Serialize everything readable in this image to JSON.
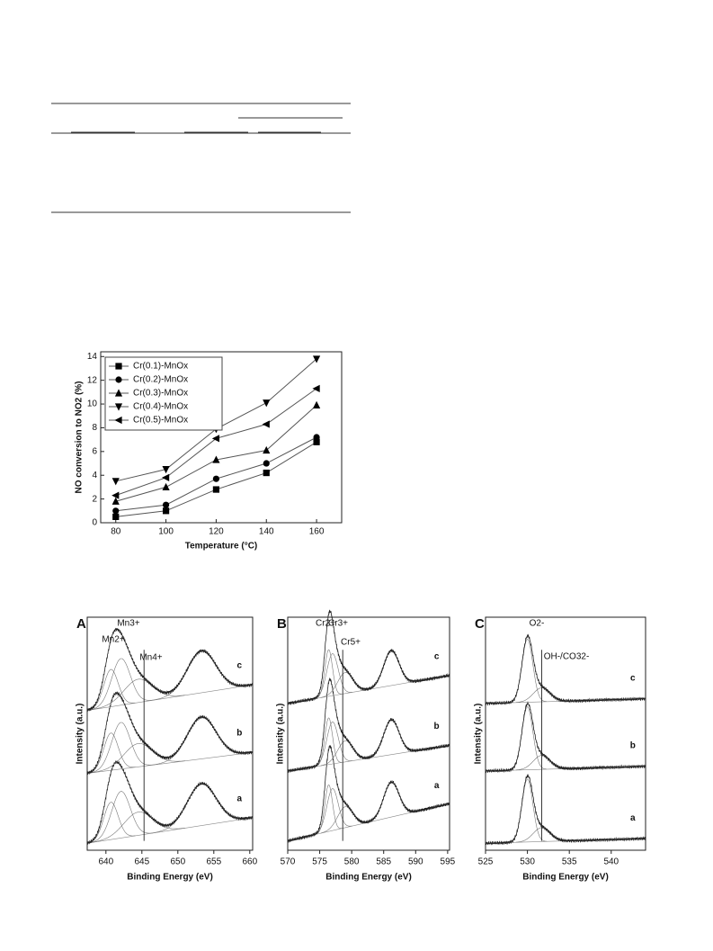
{
  "chart_data": [
    {
      "type": "line",
      "x_label": "Temperature (°C)",
      "y_label": "NO conversion to NO2 (%)",
      "x": [
        80,
        100,
        120,
        140,
        160
      ],
      "xlim": [
        74,
        170
      ],
      "xticks": [
        80,
        100,
        120,
        140,
        160
      ],
      "ylim": [
        0,
        14.4
      ],
      "yticks": [
        0,
        2,
        4,
        6,
        8,
        10,
        12,
        14
      ],
      "legend": "top-left",
      "color": "#555555",
      "series": [
        {
          "name": "Cr(0.1)-MnOx",
          "marker": "square",
          "values": [
            0.5,
            1.0,
            2.8,
            4.2,
            6.8
          ]
        },
        {
          "name": "Cr(0.2)-MnOx",
          "marker": "circle",
          "values": [
            1.0,
            1.5,
            3.7,
            5.0,
            7.2
          ]
        },
        {
          "name": "Cr(0.3)-MnOx",
          "marker": "triangle-up",
          "values": [
            1.8,
            3.0,
            5.3,
            6.1,
            9.9
          ]
        },
        {
          "name": "Cr(0.4)-MnOx",
          "marker": "triangle-down",
          "values": [
            3.5,
            4.5,
            7.9,
            10.1,
            13.8
          ]
        },
        {
          "name": "Cr(0.5)-MnOx",
          "marker": "triangle-left",
          "values": [
            2.3,
            3.8,
            7.1,
            8.3,
            11.3
          ]
        }
      ]
    },
    {
      "type": "spectrum",
      "letter": "A",
      "x_label": "Binding Energy (eV)",
      "y_label": "Intensity (a.u.)",
      "xlim": [
        637.4,
        660.4
      ],
      "xticks": [
        640,
        645,
        650,
        655,
        660
      ],
      "ylim": [
        0,
        100
      ],
      "ref_x": 645.3,
      "peak_labels": [
        "Mn2+",
        "Mn3+",
        "Mn4+"
      ],
      "components": [
        [
          640.7,
          16,
          1.0
        ],
        [
          642.1,
          20,
          1.3
        ],
        [
          644.5,
          10,
          2.0
        ],
        [
          653.3,
          18,
          2.0
        ]
      ],
      "curves": [
        {
          "name": "a",
          "baseline": [
            3,
            14
          ]
        },
        {
          "name": "b",
          "baseline": [
            33,
            42
          ]
        },
        {
          "name": "c",
          "baseline": [
            60,
            71
          ]
        }
      ]
    },
    {
      "type": "spectrum",
      "letter": "B",
      "x_label": "Binding Energy (eV)",
      "y_label": "Intensity (a.u.)",
      "xlim": [
        570,
        595.3
      ],
      "xticks": [
        570,
        575,
        580,
        585,
        590,
        595
      ],
      "ylim": [
        0,
        100
      ],
      "ref_x": 578.6,
      "peak_labels": [
        "Cr2+",
        "Cr3+",
        "Cr5+"
      ],
      "components": [
        [
          576.4,
          20,
          0.6
        ],
        [
          577.0,
          18,
          0.9
        ],
        [
          579.0,
          9,
          1.2
        ],
        [
          586.2,
          15,
          1.2
        ]
      ],
      "curves": [
        {
          "name": "a",
          "baseline": [
            4,
            20
          ]
        },
        {
          "name": "b",
          "baseline": [
            34,
            45
          ]
        },
        {
          "name": "c",
          "baseline": [
            63,
            75
          ]
        }
      ]
    },
    {
      "type": "spectrum",
      "letter": "C",
      "x_label": "Binding Energy (eV)",
      "y_label": "Intensity (a.u.)",
      "xlim": [
        525,
        544.1
      ],
      "xticks": [
        525,
        530,
        535,
        540
      ],
      "ylim": [
        0,
        100
      ],
      "ref_x": 531.7,
      "peak_labels": [
        "O2-",
        "OH-/CO32-"
      ],
      "components": [
        [
          530.0,
          27,
          0.65
        ],
        [
          531.7,
          6,
          1.0
        ]
      ],
      "curves": [
        {
          "name": "a",
          "baseline": [
            3,
            5
          ]
        },
        {
          "name": "b",
          "baseline": [
            34,
            36
          ]
        },
        {
          "name": "c",
          "baseline": [
            63,
            65
          ]
        }
      ]
    }
  ]
}
